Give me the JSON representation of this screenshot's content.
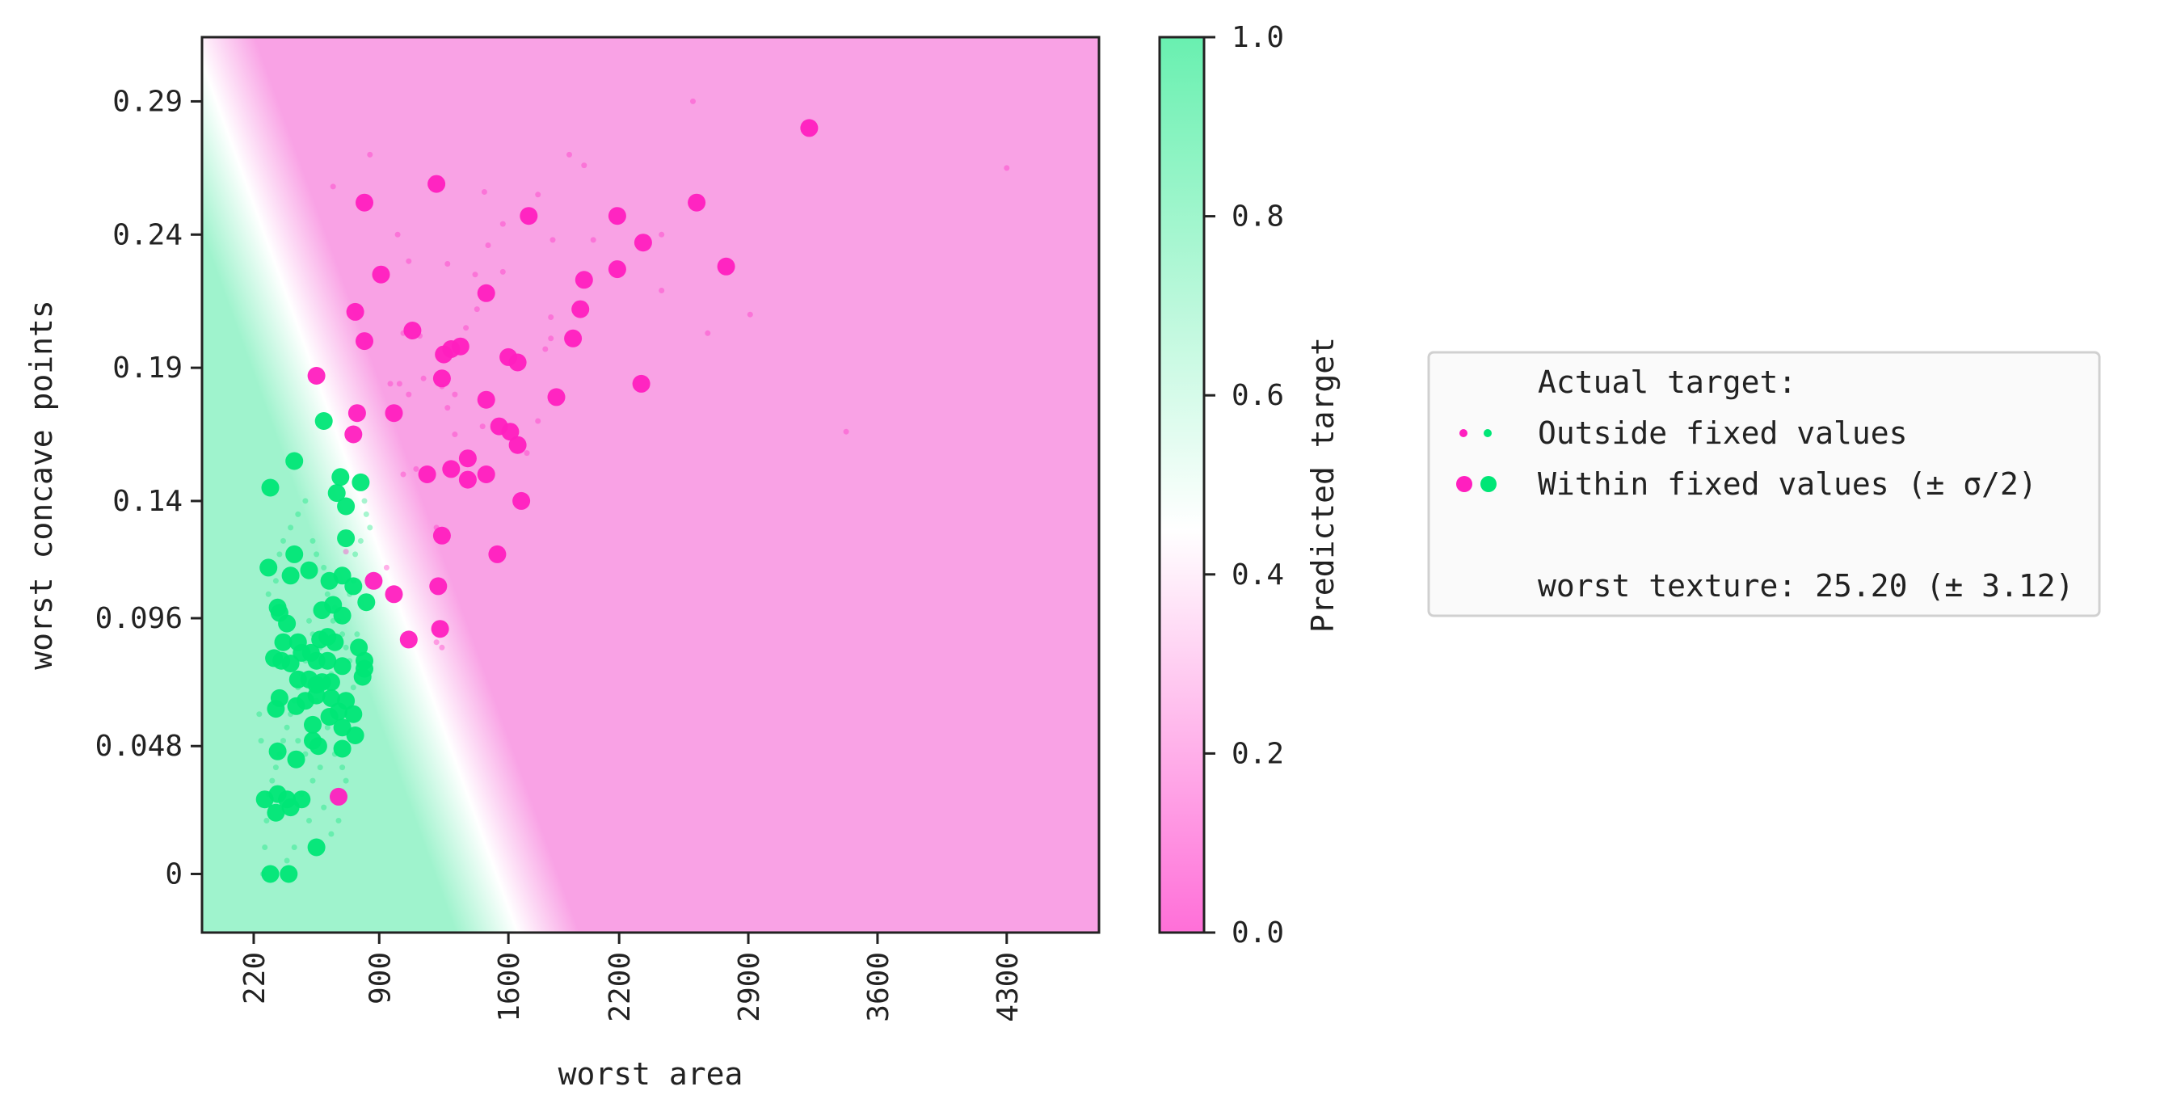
{
  "chart_data": {
    "type": "scatter",
    "xlabel": "worst area",
    "ylabel": "worst concave points",
    "xlim": [
      -60,
      4800
    ],
    "ylim": [
      -0.022,
      0.3141
    ],
    "x_ticks": [
      220,
      900,
      1600,
      2200,
      2900,
      3600,
      4300
    ],
    "y_ticks": [
      0,
      0.048,
      0.096,
      0.14,
      0.19,
      0.24,
      0.29
    ],
    "x_tick_labels": [
      "220",
      "900",
      "1600",
      "2200",
      "2900",
      "3600",
      "4300"
    ],
    "y_tick_labels": [
      "0",
      "0.048",
      "0.096",
      "0.14",
      "0.19",
      "0.24",
      "0.29"
    ],
    "colorbar": {
      "label": "Predicted target",
      "range": [
        0,
        1
      ],
      "ticks": [
        0.0,
        0.2,
        0.4,
        0.6,
        0.8,
        1.0
      ],
      "tick_labels": [
        "0.0",
        "0.2",
        "0.4",
        "0.6",
        "0.8",
        "1.0"
      ],
      "colors": [
        "#ff6fd8",
        "#ffffff",
        "#69f0b0"
      ],
      "color_stops": [
        0,
        0.45,
        1
      ]
    },
    "background": {
      "boundary_line": [
        [
          -60,
          0.305
        ],
        [
          1650,
          -0.022
        ]
      ],
      "negative_color": "#f9a2e5",
      "positive_color": "#9ff3cd"
    },
    "class_colors": {
      "0": "#ff1fbf",
      "1": "#00e676"
    },
    "legend": {
      "title": "Actual target:",
      "outside_label": "Outside fixed values",
      "within_label": "Within fixed values (± σ/2)",
      "fixed_feature_text": "worst texture: 25.20 (± 3.12)",
      "placement": "right"
    },
    "series": [
      {
        "class": 0,
        "marker": "large",
        "points": [
          [
            3230,
            0.28
          ],
          [
            820,
            0.252
          ],
          [
            1210,
            0.259
          ],
          [
            1710,
            0.247
          ],
          [
            2190,
            0.247
          ],
          [
            2620,
            0.252
          ],
          [
            2330,
            0.237
          ],
          [
            910,
            0.225
          ],
          [
            2010,
            0.223
          ],
          [
            2190,
            0.227
          ],
          [
            2780,
            0.228
          ],
          [
            1480,
            0.218
          ],
          [
            770,
            0.211
          ],
          [
            1080,
            0.204
          ],
          [
            1990,
            0.212
          ],
          [
            820,
            0.2
          ],
          [
            1340,
            0.198
          ],
          [
            1290,
            0.197
          ],
          [
            1250,
            0.195
          ],
          [
            1600,
            0.194
          ],
          [
            1950,
            0.201
          ],
          [
            1650,
            0.192
          ],
          [
            1240,
            0.186
          ],
          [
            560,
            0.187
          ],
          [
            1480,
            0.178
          ],
          [
            1860,
            0.179
          ],
          [
            2320,
            0.184
          ],
          [
            780,
            0.173
          ],
          [
            980,
            0.173
          ],
          [
            760,
            0.165
          ],
          [
            1550,
            0.168
          ],
          [
            1610,
            0.166
          ],
          [
            1650,
            0.161
          ],
          [
            1160,
            0.15
          ],
          [
            1290,
            0.152
          ],
          [
            1380,
            0.156
          ],
          [
            1380,
            0.148
          ],
          [
            1480,
            0.15
          ],
          [
            1670,
            0.14
          ],
          [
            1240,
            0.127
          ],
          [
            1540,
            0.12
          ],
          [
            870,
            0.11
          ],
          [
            980,
            0.105
          ],
          [
            1220,
            0.108
          ],
          [
            1230,
            0.092
          ],
          [
            1060,
            0.088
          ],
          [
            680,
            0.029
          ]
        ]
      },
      {
        "class": 1,
        "marker": "large",
        "points": [
          [
            600,
            0.17
          ],
          [
            440,
            0.155
          ],
          [
            690,
            0.149
          ],
          [
            800,
            0.147
          ],
          [
            310,
            0.145
          ],
          [
            670,
            0.143
          ],
          [
            720,
            0.138
          ],
          [
            440,
            0.12
          ],
          [
            720,
            0.126
          ],
          [
            300,
            0.115
          ],
          [
            420,
            0.112
          ],
          [
            630,
            0.11
          ],
          [
            700,
            0.112
          ],
          [
            520,
            0.114
          ],
          [
            760,
            0.108
          ],
          [
            590,
            0.099
          ],
          [
            650,
            0.101
          ],
          [
            830,
            0.102
          ],
          [
            350,
            0.1
          ],
          [
            360,
            0.098
          ],
          [
            700,
            0.097
          ],
          [
            400,
            0.094
          ],
          [
            580,
            0.088
          ],
          [
            620,
            0.089
          ],
          [
            380,
            0.087
          ],
          [
            460,
            0.087
          ],
          [
            660,
            0.087
          ],
          [
            790,
            0.085
          ],
          [
            530,
            0.083
          ],
          [
            560,
            0.08
          ],
          [
            620,
            0.08
          ],
          [
            480,
            0.083
          ],
          [
            330,
            0.081
          ],
          [
            370,
            0.08
          ],
          [
            420,
            0.079
          ],
          [
            700,
            0.078
          ],
          [
            820,
            0.08
          ],
          [
            820,
            0.077
          ],
          [
            810,
            0.074
          ],
          [
            460,
            0.073
          ],
          [
            520,
            0.073
          ],
          [
            590,
            0.072
          ],
          [
            640,
            0.072
          ],
          [
            560,
            0.071
          ],
          [
            560,
            0.067
          ],
          [
            360,
            0.066
          ],
          [
            640,
            0.066
          ],
          [
            500,
            0.065
          ],
          [
            450,
            0.063
          ],
          [
            720,
            0.065
          ],
          [
            680,
            0.061
          ],
          [
            340,
            0.062
          ],
          [
            630,
            0.059
          ],
          [
            760,
            0.06
          ],
          [
            540,
            0.056
          ],
          [
            700,
            0.055
          ],
          [
            770,
            0.052
          ],
          [
            540,
            0.05
          ],
          [
            570,
            0.048
          ],
          [
            350,
            0.046
          ],
          [
            700,
            0.047
          ],
          [
            450,
            0.043
          ],
          [
            280,
            0.028
          ],
          [
            350,
            0.03
          ],
          [
            400,
            0.028
          ],
          [
            480,
            0.028
          ],
          [
            340,
            0.023
          ],
          [
            420,
            0.025
          ],
          [
            560,
            0.01
          ],
          [
            310,
            0
          ],
          [
            410,
            0
          ]
        ]
      },
      {
        "class": 0,
        "marker": "small",
        "points": [
          [
            2600,
            0.29
          ],
          [
            4300,
            0.265
          ],
          [
            1930,
            0.27
          ],
          [
            2010,
            0.266
          ],
          [
            850,
            0.27
          ],
          [
            650,
            0.258
          ],
          [
            1470,
            0.256
          ],
          [
            1570,
            0.244
          ],
          [
            1760,
            0.255
          ],
          [
            1840,
            0.238
          ],
          [
            1000,
            0.24
          ],
          [
            2430,
            0.24
          ],
          [
            1270,
            0.229
          ],
          [
            1570,
            0.226
          ],
          [
            1420,
            0.225
          ],
          [
            1060,
            0.23
          ],
          [
            1490,
            0.236
          ],
          [
            2060,
            0.238
          ],
          [
            1830,
            0.209
          ],
          [
            2430,
            0.219
          ],
          [
            2910,
            0.21
          ],
          [
            2680,
            0.203
          ],
          [
            1830,
            0.201
          ],
          [
            1800,
            0.197
          ],
          [
            1430,
            0.212
          ],
          [
            1370,
            0.205
          ],
          [
            1120,
            0.202
          ],
          [
            1030,
            0.203
          ],
          [
            1270,
            0.175
          ],
          [
            1310,
            0.18
          ],
          [
            1060,
            0.18
          ],
          [
            1140,
            0.186
          ],
          [
            1240,
            0.183
          ],
          [
            1310,
            0.165
          ],
          [
            1460,
            0.168
          ],
          [
            1760,
            0.17
          ],
          [
            1700,
            0.158
          ],
          [
            1030,
            0.15
          ],
          [
            1100,
            0.152
          ],
          [
            960,
            0.184
          ],
          [
            1010,
            0.184
          ],
          [
            3430,
            0.166
          ],
          [
            720,
            0.121
          ],
          [
            940,
            0.115
          ],
          [
            1210,
            0.13
          ],
          [
            1240,
            0.085
          ],
          [
            1210,
            0.087
          ]
        ]
      },
      {
        "class": 1,
        "marker": "small",
        "points": [
          [
            820,
            0.14
          ],
          [
            830,
            0.135
          ],
          [
            850,
            0.13
          ],
          [
            800,
            0.125
          ],
          [
            770,
            0.12
          ],
          [
            760,
            0.11
          ],
          [
            740,
            0.105
          ],
          [
            700,
            0.09
          ],
          [
            650,
            0.095
          ],
          [
            600,
            0.09
          ],
          [
            580,
            0.085
          ],
          [
            540,
            0.09
          ],
          [
            520,
            0.095
          ],
          [
            500,
            0.08
          ],
          [
            480,
            0.075
          ],
          [
            460,
            0.07
          ],
          [
            440,
            0.065
          ],
          [
            420,
            0.06
          ],
          [
            400,
            0.055
          ],
          [
            380,
            0.05
          ],
          [
            360,
            0.045
          ],
          [
            340,
            0.04
          ],
          [
            320,
            0.035
          ],
          [
            300,
            0.03
          ],
          [
            290,
            0.02
          ],
          [
            280,
            0.01
          ],
          [
            270,
            0.0
          ],
          [
            260,
            0.05
          ],
          [
            250,
            0.06
          ],
          [
            300,
            0.105
          ],
          [
            340,
            0.11
          ],
          [
            360,
            0.12
          ],
          [
            380,
            0.125
          ],
          [
            420,
            0.13
          ],
          [
            460,
            0.135
          ],
          [
            500,
            0.14
          ],
          [
            540,
            0.125
          ],
          [
            560,
            0.12
          ],
          [
            600,
            0.115
          ],
          [
            620,
            0.105
          ],
          [
            660,
            0.1
          ],
          [
            680,
            0.095
          ],
          [
            640,
            0.075
          ],
          [
            600,
            0.07
          ],
          [
            560,
            0.065
          ],
          [
            620,
            0.055
          ],
          [
            660,
            0.045
          ],
          [
            700,
            0.04
          ],
          [
            720,
            0.035
          ],
          [
            680,
            0.02
          ],
          [
            640,
            0.015
          ],
          [
            600,
            0.025
          ],
          [
            540,
            0.035
          ],
          [
            500,
            0.045
          ],
          [
            460,
            0.05
          ],
          [
            520,
            0.02
          ],
          [
            440,
            0.01
          ],
          [
            400,
            0.005
          ],
          [
            480,
            0.03
          ],
          [
            580,
            0.04
          ],
          [
            760,
            0.07
          ],
          [
            780,
            0.09
          ],
          [
            740,
            0.08
          ],
          [
            720,
            0.085
          ]
        ]
      }
    ]
  }
}
